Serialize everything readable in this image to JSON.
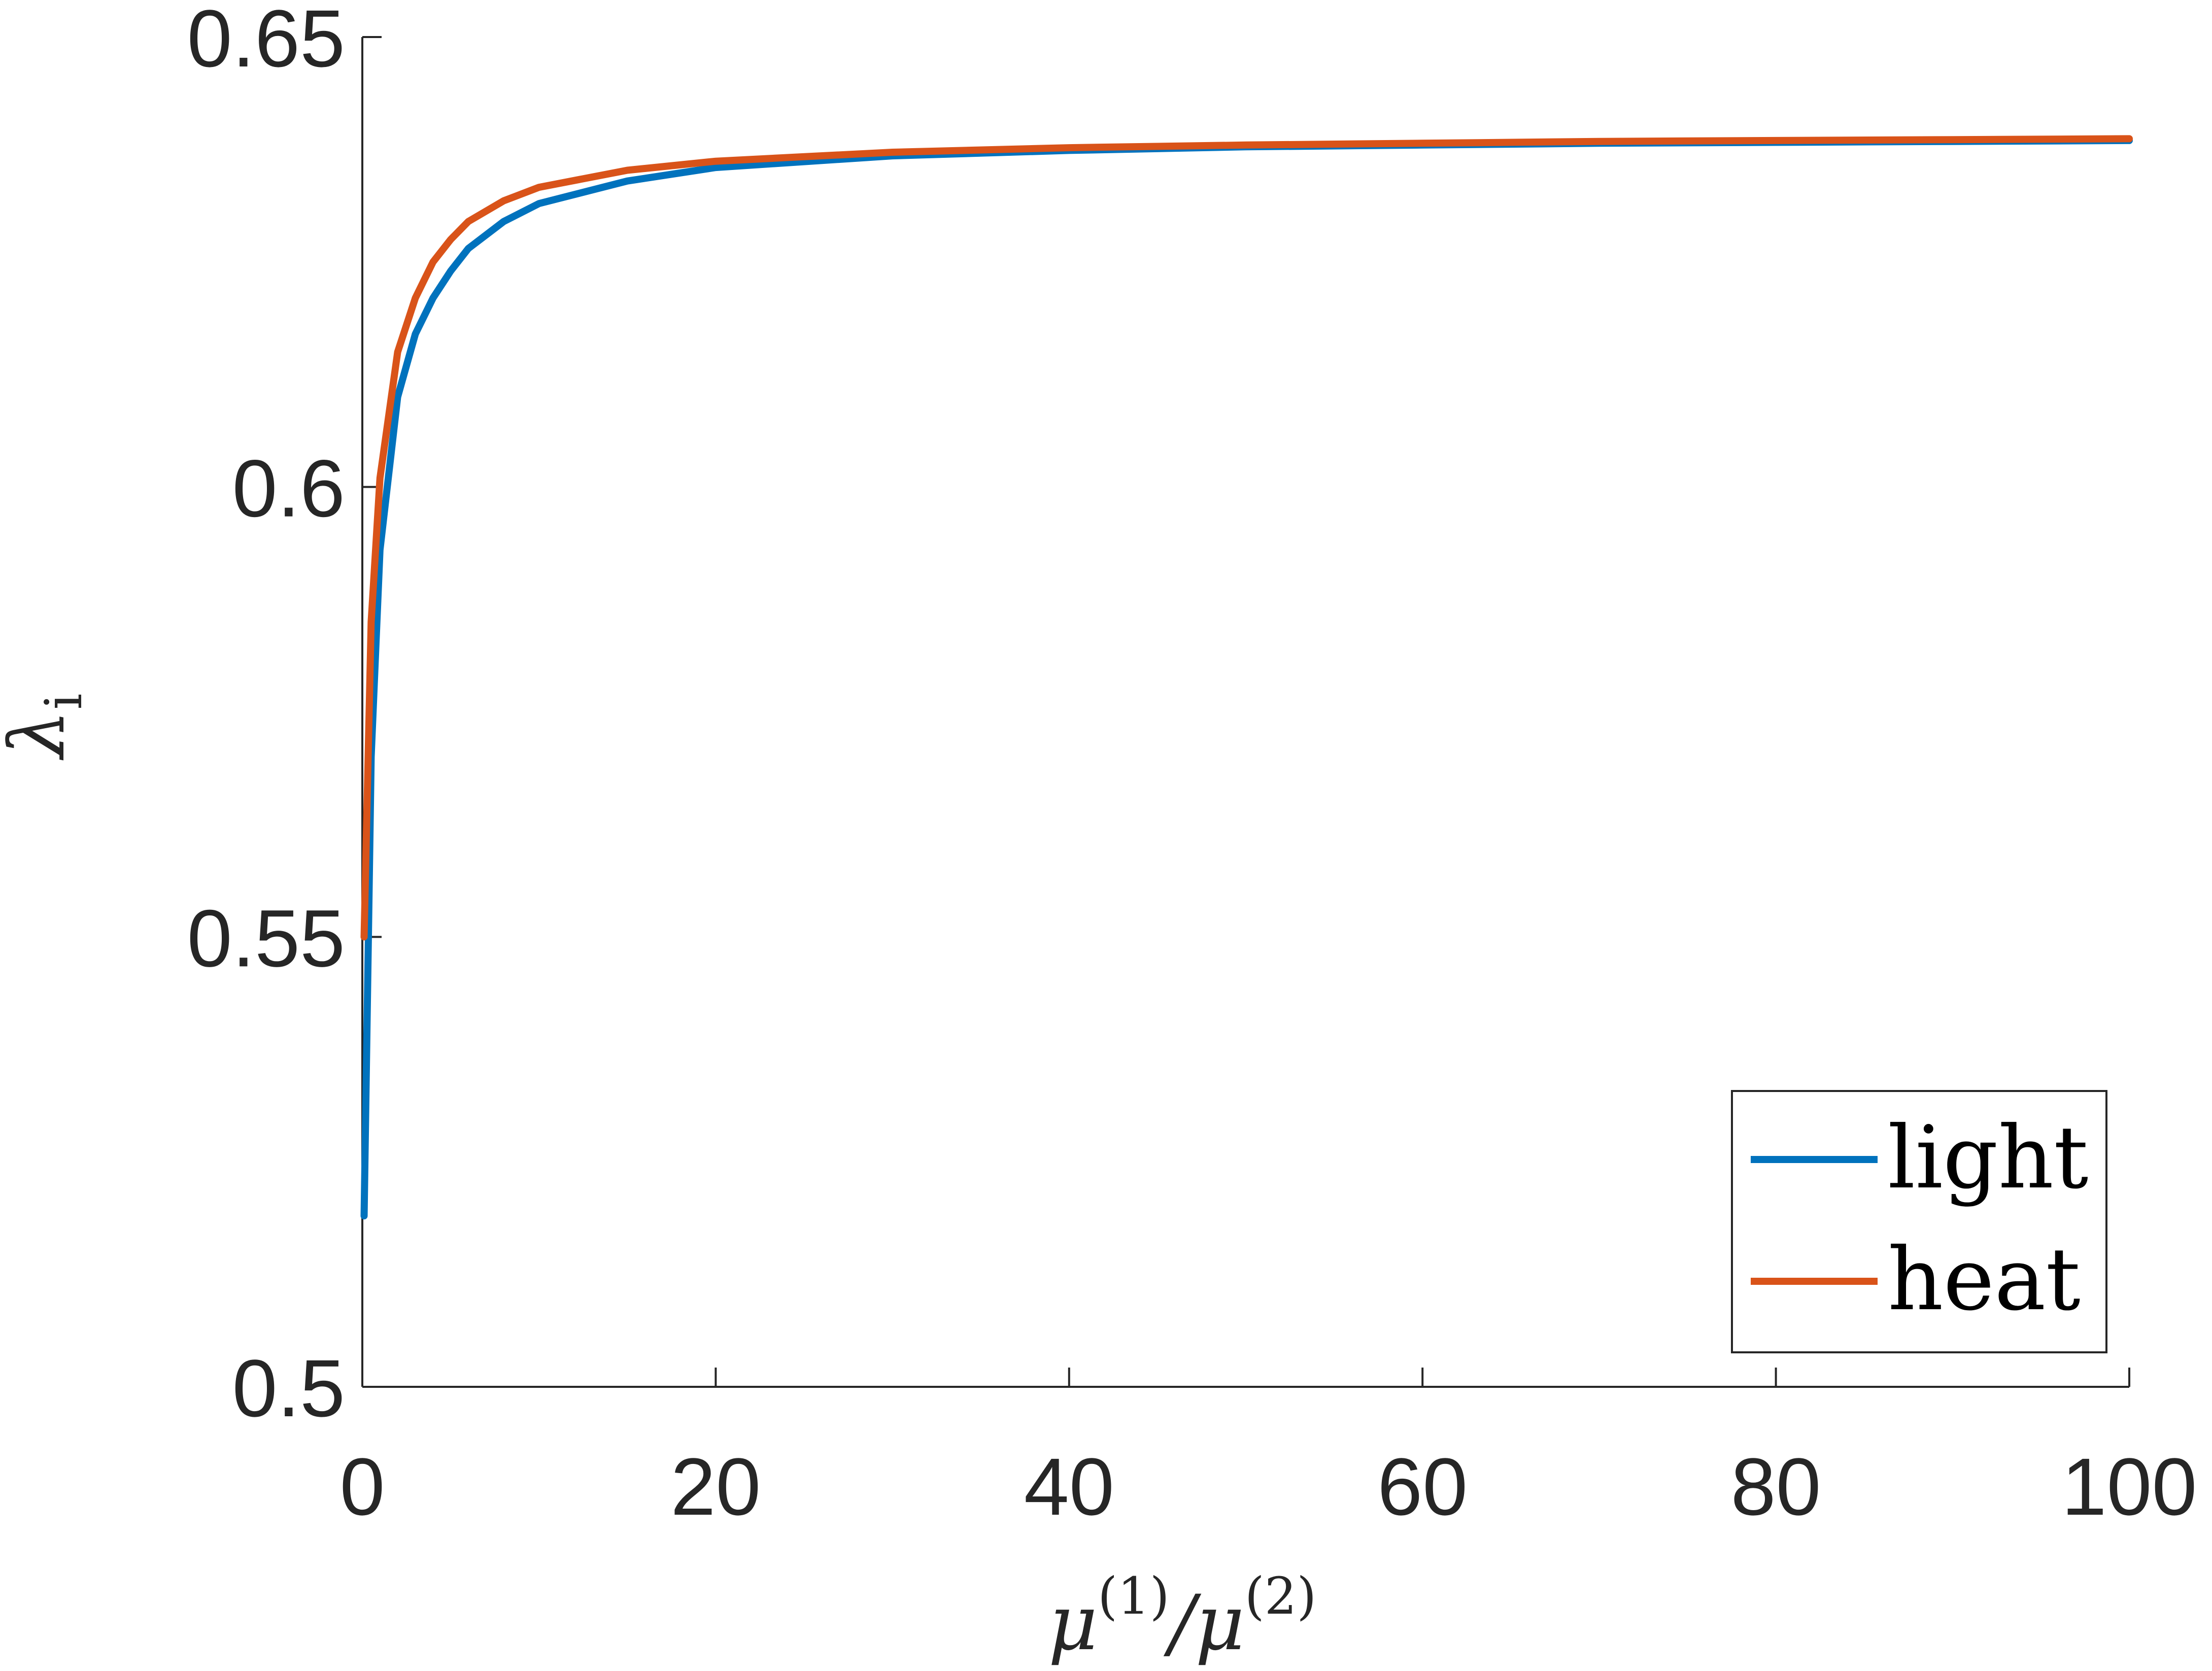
{
  "chart_data": {
    "type": "line",
    "xlabel": "μ(1)/μ(2)",
    "ylabel": "λi",
    "xlim": [
      0,
      100
    ],
    "ylim": [
      0.5,
      0.65
    ],
    "xticks": [
      0,
      20,
      40,
      60,
      80,
      100
    ],
    "xtick_labels": [
      "0",
      "20",
      "40",
      "60",
      "80",
      "100"
    ],
    "yticks": [
      0.5,
      0.55,
      0.6,
      0.65
    ],
    "ytick_labels": [
      "0.5",
      "0.55",
      "0.6",
      "0.65"
    ],
    "grid": false,
    "legend_position": "bottom-right",
    "series": [
      {
        "name": "light",
        "color": "#0072BD",
        "x": [
          0.1,
          0.5,
          1,
          2,
          3,
          4,
          5,
          6,
          8,
          10,
          15,
          20,
          30,
          40,
          50,
          60,
          70,
          80,
          90,
          100
        ],
        "y": [
          0.519,
          0.57,
          0.593,
          0.61,
          0.617,
          0.621,
          0.624,
          0.6265,
          0.6295,
          0.6315,
          0.634,
          0.6355,
          0.6368,
          0.6374,
          0.6378,
          0.638,
          0.6382,
          0.6383,
          0.6384,
          0.6385
        ]
      },
      {
        "name": "heat",
        "color": "#D95319",
        "x": [
          0.1,
          0.5,
          1,
          2,
          3,
          4,
          5,
          6,
          8,
          10,
          15,
          20,
          30,
          40,
          50,
          60,
          70,
          80,
          90,
          100
        ],
        "y": [
          0.55,
          0.585,
          0.601,
          0.615,
          0.621,
          0.625,
          0.6275,
          0.6295,
          0.6318,
          0.6333,
          0.6352,
          0.6362,
          0.6372,
          0.6377,
          0.638,
          0.6382,
          0.6384,
          0.6385,
          0.6386,
          0.6387
        ]
      }
    ]
  }
}
